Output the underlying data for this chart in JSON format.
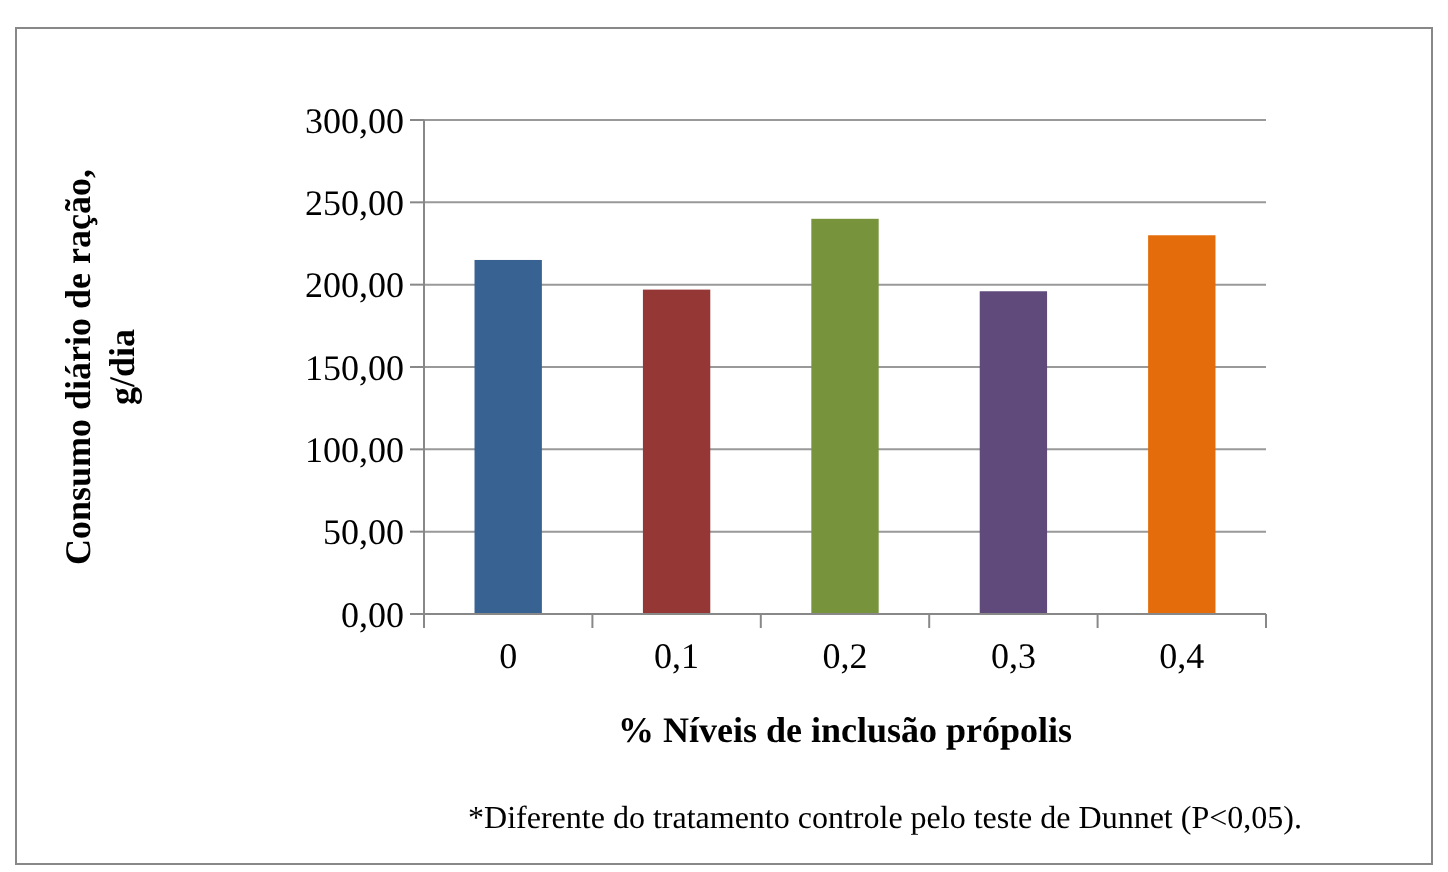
{
  "chart_data": {
    "type": "bar",
    "xlabel": "% Níveis de inclusão própolis",
    "ylabel": "Consumo diário de ração, g/dia",
    "categories": [
      "0",
      "0,1",
      "0,2",
      "0,3",
      "0,4"
    ],
    "values": [
      215,
      197,
      240,
      196,
      230
    ],
    "colors": [
      "#386291",
      "#953735",
      "#77933c",
      "#604a7b",
      "#e46c0a"
    ],
    "ylim": [
      0,
      300
    ],
    "yticks": [
      {
        "value": 0,
        "label": "0,00"
      },
      {
        "value": 50,
        "label": "50,00"
      },
      {
        "value": 100,
        "label": "100,00"
      },
      {
        "value": 150,
        "label": "150,00"
      },
      {
        "value": 200,
        "label": "200,00"
      },
      {
        "value": 250,
        "label": "250,00"
      },
      {
        "value": 300,
        "label": "300,00"
      }
    ],
    "grid": "y",
    "annotations": [
      "*Diferente do tratamento controle pelo teste de Dunnet (P<0,05)."
    ]
  }
}
